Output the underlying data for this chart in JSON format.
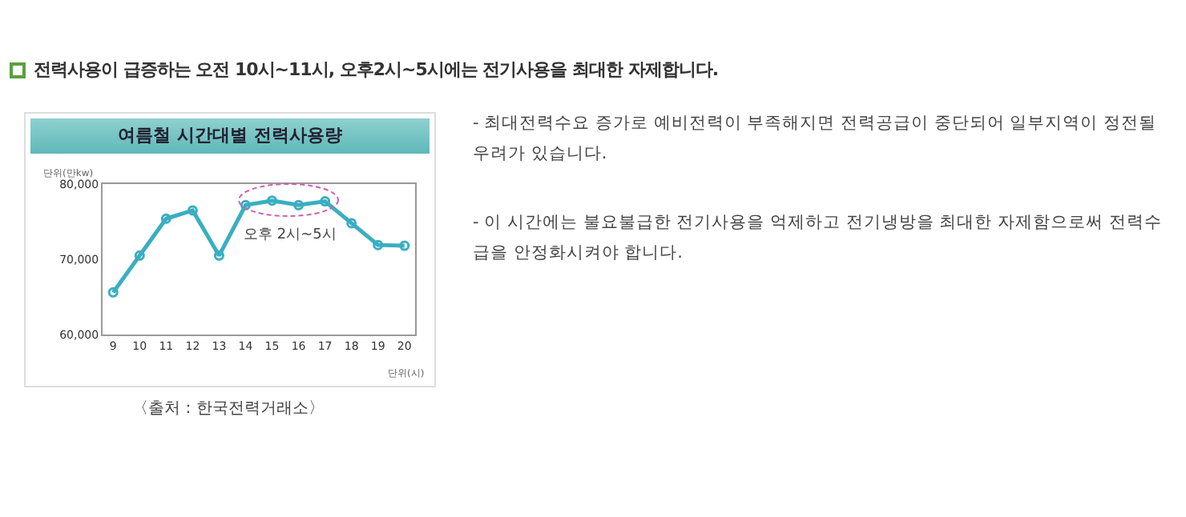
{
  "chart_data": {
    "type": "line",
    "title": "여름철 시간대별 전력사용량",
    "ylabel": "단위(만kw)",
    "xlabel": "단위(시)",
    "x": [
      9,
      10,
      11,
      12,
      13,
      14,
      15,
      16,
      17,
      18,
      19,
      20
    ],
    "series": [
      {
        "color": "#3aaec0",
        "values": [
          65600,
          70500,
          75400,
          76500,
          70500,
          77200,
          77800,
          77200,
          77700,
          74800,
          71900,
          71800
        ]
      }
    ],
    "xlim": [
      8.6,
      20.4
    ],
    "xticks": [
      9,
      10,
      11,
      12,
      13,
      14,
      15,
      16,
      17,
      18,
      19,
      20
    ],
    "ylim": [
      60000,
      80000
    ],
    "yticks": [
      {
        "value": 60000,
        "label": "60,000"
      },
      {
        "value": 70000,
        "label": "70,000"
      },
      {
        "value": 80000,
        "label": "80,000"
      }
    ],
    "annotations": [
      "전력사용이 급증하는 오전 10시~11시, 오후2시~5시에는 전기사용을 최대한 자제합니다.",
      "〈출처 : 한국전력거래소〉",
      "- 최대전력수요 증가로 예비전력이 부족해지면 전력공급이 중단되어 일부지역이 정전될 우려가 있습니다.",
      "- 이 시간에는 불요불급한 전기사용을 억제하고 전기냉방을 최대한 자제함으로써 전력수급을 안정화시켜야 합니다.",
      "오후 2시~5시"
    ],
    "grid": false,
    "legend": false,
    "marker": "circle",
    "line_style": "solid"
  }
}
